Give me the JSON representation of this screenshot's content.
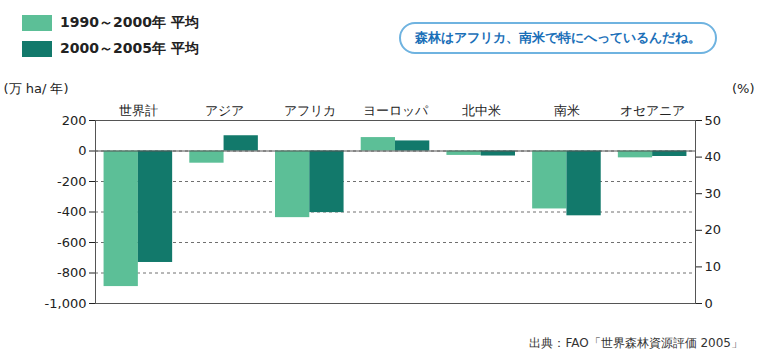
{
  "chart_data": {
    "type": "bar",
    "annotation": "森林はアフリカ、南米で特にへっているんだね。",
    "source": "出典：FAO「世界森林資源評価 2005」",
    "ylabel": "(万 ha/ 年)",
    "y2label": "(%)",
    "categories": [
      "世界計",
      "アジア",
      "アフリカ",
      "ヨーロッパ",
      "北中米",
      "南米",
      "オセアニア"
    ],
    "series": [
      {
        "name": "1990～2000年 平均",
        "color": "#5cbf97",
        "values": [
          -889,
          -80,
          -437,
          88,
          -29,
          -380,
          -45
        ]
      },
      {
        "name": "2000～2005年 平均",
        "color": "#12796b",
        "values": [
          -731,
          100,
          -404,
          66,
          -33,
          -425,
          -36
        ]
      }
    ],
    "ylim": [
      -1000,
      200
    ],
    "yticks": [
      {
        "value": -1000,
        "label": "-1,000"
      },
      -800,
      -600,
      -400,
      -200,
      0,
      200
    ],
    "y2lim": [
      0,
      50
    ],
    "y2ticks": [
      0,
      10,
      20,
      30,
      40,
      50
    ],
    "grid": true,
    "legend": "top-left"
  }
}
